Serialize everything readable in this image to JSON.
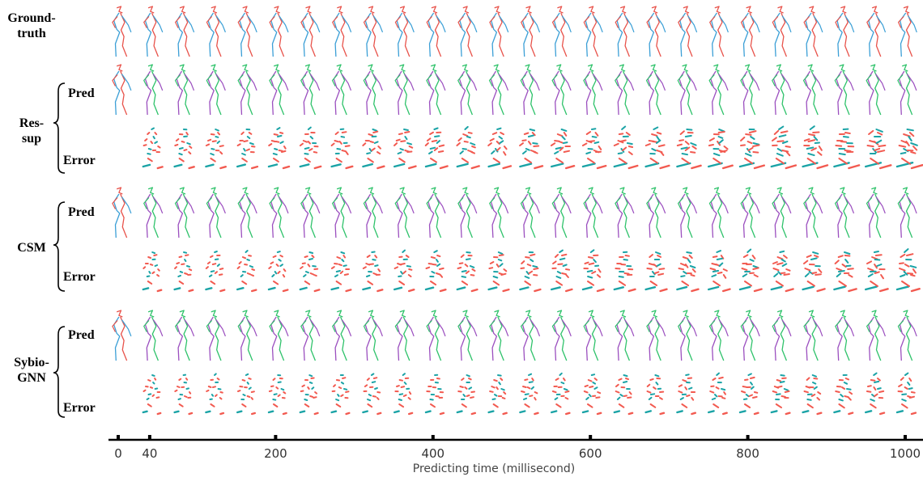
{
  "labels": {
    "ground_truth_1": "Ground-",
    "ground_truth_2": "truth",
    "ressup_1": "Res-",
    "ressup_2": "sup",
    "csm": "CSM",
    "sybio_1": "Sybio-",
    "sybio_2": "GNN",
    "pred": "Pred",
    "error": "Error"
  },
  "axis": {
    "title": "Predicting time (millisecond)",
    "ticks": [
      "0",
      "40",
      "200",
      "400",
      "600",
      "800",
      "1000"
    ],
    "tick_values": [
      0,
      40,
      200,
      400,
      600,
      800,
      1000
    ],
    "range": [
      0,
      1000
    ],
    "frame_count": 26
  },
  "colors": {
    "gt_left": "#e8524a",
    "gt_right": "#3b9fd6",
    "pred_left": "#2ec26a",
    "pred_right": "#9b4fbf",
    "err_red": "#f25a50",
    "err_teal": "#1aa3a6"
  }
}
